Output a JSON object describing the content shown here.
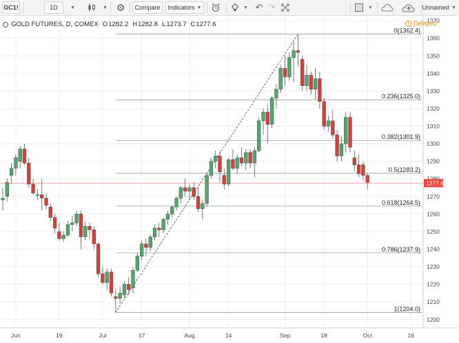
{
  "toolbar": {
    "symbol": "GC1!",
    "interval": "1D",
    "compare_label": "Compare",
    "indicators_label": "Indicators",
    "layout_name": "Unnamed"
  },
  "legend": {
    "title": "GOLD FUTURES, D, COMEX",
    "open_key": "O",
    "open": "1282.2",
    "high_key": "H",
    "high": "1282.8",
    "low_key": "L",
    "low": "1273.7",
    "close_key": "C",
    "close": "1277.6"
  },
  "status": {
    "delayed_label": "Delayed"
  },
  "colors": {
    "up": "#53a66e",
    "down": "#d3413b",
    "fib_line": "#9a9a9a",
    "last_price": "#e8463f",
    "grid": "#eeeeee"
  },
  "chart_data": {
    "type": "candlestick",
    "title": "GOLD FUTURES, D, COMEX",
    "symbol": "GC1!",
    "interval": "D",
    "ylim": [
      1196,
      1372
    ],
    "y_ticks": [
      1200,
      1210,
      1220,
      1230,
      1240,
      1250,
      1260,
      1270,
      1280,
      1290,
      1300,
      1310,
      1320,
      1330,
      1340,
      1350,
      1360,
      1370
    ],
    "x_labels": [
      "Jun",
      "19",
      "Jul",
      "17",
      "Aug",
      "14",
      "Sep",
      "18",
      "Oct",
      "16"
    ],
    "x_label_bars": [
      3,
      13,
      23,
      32,
      43,
      52,
      65,
      74,
      84,
      94
    ],
    "bar_count": 97,
    "last_price": 1277.6,
    "last_price_label": "1277.6",
    "fibonacci": {
      "levels": [
        {
          "ratio": "0",
          "price": 1362.4,
          "label": "0(1362.4)"
        },
        {
          "ratio": "0.236",
          "price": 1325.0,
          "label": "0.236(1325.0)"
        },
        {
          "ratio": "0.382",
          "price": 1301.9,
          "label": "0.382(1301.9)"
        },
        {
          "ratio": "0.5",
          "price": 1283.2,
          "label": "0.5(1283.2)"
        },
        {
          "ratio": "0.618",
          "price": 1264.5,
          "label": "0.618(1264.5)"
        },
        {
          "ratio": "0.786",
          "price": 1237.9,
          "label": "0.786(1237.9)"
        },
        {
          "ratio": "1",
          "price": 1204.0,
          "label": "1(1204.0)"
        }
      ],
      "anchor_low": {
        "bar": 26,
        "price": 1204.0
      },
      "anchor_high": {
        "bar": 68,
        "price": 1362.4
      }
    },
    "candles": [
      {
        "o": 1268,
        "h": 1275,
        "l": 1262,
        "c": 1269
      },
      {
        "o": 1270,
        "h": 1280,
        "l": 1267,
        "c": 1278
      },
      {
        "o": 1282,
        "h": 1289,
        "l": 1277,
        "c": 1286
      },
      {
        "o": 1286,
        "h": 1294,
        "l": 1282,
        "c": 1292
      },
      {
        "o": 1290,
        "h": 1299,
        "l": 1286,
        "c": 1297
      },
      {
        "o": 1297,
        "h": 1300,
        "l": 1288,
        "c": 1289
      },
      {
        "o": 1289,
        "h": 1292,
        "l": 1275,
        "c": 1277
      },
      {
        "o": 1277,
        "h": 1280,
        "l": 1271,
        "c": 1272
      },
      {
        "o": 1271,
        "h": 1274,
        "l": 1268,
        "c": 1271
      },
      {
        "o": 1271,
        "h": 1280,
        "l": 1262,
        "c": 1269
      },
      {
        "o": 1269,
        "h": 1272,
        "l": 1263,
        "c": 1265
      },
      {
        "o": 1264,
        "h": 1266,
        "l": 1256,
        "c": 1258
      },
      {
        "o": 1258,
        "h": 1260,
        "l": 1249,
        "c": 1252
      },
      {
        "o": 1250,
        "h": 1255,
        "l": 1245,
        "c": 1246
      },
      {
        "o": 1246,
        "h": 1250,
        "l": 1244,
        "c": 1248
      },
      {
        "o": 1248,
        "h": 1256,
        "l": 1247,
        "c": 1254
      },
      {
        "o": 1254,
        "h": 1259,
        "l": 1250,
        "c": 1255
      },
      {
        "o": 1255,
        "h": 1262,
        "l": 1253,
        "c": 1260
      },
      {
        "o": 1260,
        "h": 1262,
        "l": 1240,
        "c": 1247
      },
      {
        "o": 1247,
        "h": 1256,
        "l": 1245,
        "c": 1253
      },
      {
        "o": 1253,
        "h": 1255,
        "l": 1246,
        "c": 1251
      },
      {
        "o": 1251,
        "h": 1253,
        "l": 1240,
        "c": 1243
      },
      {
        "o": 1243,
        "h": 1244,
        "l": 1224,
        "c": 1226
      },
      {
        "o": 1226,
        "h": 1230,
        "l": 1220,
        "c": 1221
      },
      {
        "o": 1221,
        "h": 1229,
        "l": 1217,
        "c": 1227
      },
      {
        "o": 1227,
        "h": 1229,
        "l": 1213,
        "c": 1215
      },
      {
        "o": 1213,
        "h": 1217,
        "l": 1204,
        "c": 1212
      },
      {
        "o": 1212,
        "h": 1219,
        "l": 1209,
        "c": 1215
      },
      {
        "o": 1214,
        "h": 1222,
        "l": 1212,
        "c": 1220
      },
      {
        "o": 1220,
        "h": 1224,
        "l": 1214,
        "c": 1217
      },
      {
        "o": 1218,
        "h": 1230,
        "l": 1215,
        "c": 1228
      },
      {
        "o": 1228,
        "h": 1238,
        "l": 1227,
        "c": 1236
      },
      {
        "o": 1236,
        "h": 1245,
        "l": 1234,
        "c": 1243
      },
      {
        "o": 1243,
        "h": 1246,
        "l": 1236,
        "c": 1241
      },
      {
        "o": 1241,
        "h": 1248,
        "l": 1239,
        "c": 1247
      },
      {
        "o": 1247,
        "h": 1254,
        "l": 1245,
        "c": 1252
      },
      {
        "o": 1252,
        "h": 1255,
        "l": 1247,
        "c": 1251
      },
      {
        "o": 1251,
        "h": 1258,
        "l": 1249,
        "c": 1257
      },
      {
        "o": 1257,
        "h": 1262,
        "l": 1254,
        "c": 1260
      },
      {
        "o": 1260,
        "h": 1265,
        "l": 1258,
        "c": 1264
      },
      {
        "o": 1264,
        "h": 1270,
        "l": 1262,
        "c": 1269
      },
      {
        "o": 1269,
        "h": 1276,
        "l": 1266,
        "c": 1275
      },
      {
        "o": 1275,
        "h": 1280,
        "l": 1270,
        "c": 1273
      },
      {
        "o": 1273,
        "h": 1277,
        "l": 1268,
        "c": 1275
      },
      {
        "o": 1275,
        "h": 1278,
        "l": 1268,
        "c": 1270
      },
      {
        "o": 1270,
        "h": 1275,
        "l": 1261,
        "c": 1263
      },
      {
        "o": 1263,
        "h": 1268,
        "l": 1257,
        "c": 1266
      },
      {
        "o": 1266,
        "h": 1283,
        "l": 1264,
        "c": 1282
      },
      {
        "o": 1282,
        "h": 1292,
        "l": 1280,
        "c": 1290
      },
      {
        "o": 1290,
        "h": 1296,
        "l": 1286,
        "c": 1293
      },
      {
        "o": 1293,
        "h": 1296,
        "l": 1278,
        "c": 1284
      },
      {
        "o": 1282,
        "h": 1286,
        "l": 1274,
        "c": 1277
      },
      {
        "o": 1277,
        "h": 1292,
        "l": 1276,
        "c": 1291
      },
      {
        "o": 1291,
        "h": 1297,
        "l": 1285,
        "c": 1286
      },
      {
        "o": 1286,
        "h": 1294,
        "l": 1283,
        "c": 1292
      },
      {
        "o": 1292,
        "h": 1298,
        "l": 1287,
        "c": 1289
      },
      {
        "o": 1289,
        "h": 1297,
        "l": 1285,
        "c": 1295
      },
      {
        "o": 1295,
        "h": 1297,
        "l": 1286,
        "c": 1289
      },
      {
        "o": 1289,
        "h": 1298,
        "l": 1281,
        "c": 1296
      },
      {
        "o": 1296,
        "h": 1315,
        "l": 1295,
        "c": 1313
      },
      {
        "o": 1313,
        "h": 1320,
        "l": 1305,
        "c": 1318
      },
      {
        "o": 1318,
        "h": 1322,
        "l": 1300,
        "c": 1311
      },
      {
        "o": 1311,
        "h": 1327,
        "l": 1309,
        "c": 1326
      },
      {
        "o": 1326,
        "h": 1334,
        "l": 1320,
        "c": 1331
      },
      {
        "o": 1331,
        "h": 1345,
        "l": 1329,
        "c": 1343
      },
      {
        "o": 1343,
        "h": 1350,
        "l": 1333,
        "c": 1338
      },
      {
        "o": 1338,
        "h": 1352,
        "l": 1336,
        "c": 1349
      },
      {
        "o": 1349,
        "h": 1358,
        "l": 1335,
        "c": 1353
      },
      {
        "o": 1353,
        "h": 1362,
        "l": 1344,
        "c": 1352
      },
      {
        "o": 1348,
        "h": 1350,
        "l": 1330,
        "c": 1333
      },
      {
        "o": 1333,
        "h": 1345,
        "l": 1330,
        "c": 1339
      },
      {
        "o": 1339,
        "h": 1341,
        "l": 1328,
        "c": 1331
      },
      {
        "o": 1331,
        "h": 1343,
        "l": 1325,
        "c": 1337
      },
      {
        "o": 1337,
        "h": 1341,
        "l": 1320,
        "c": 1324
      },
      {
        "o": 1324,
        "h": 1326,
        "l": 1308,
        "c": 1310
      },
      {
        "o": 1310,
        "h": 1316,
        "l": 1307,
        "c": 1313
      },
      {
        "o": 1313,
        "h": 1319,
        "l": 1303,
        "c": 1305
      },
      {
        "o": 1305,
        "h": 1308,
        "l": 1290,
        "c": 1293
      },
      {
        "o": 1293,
        "h": 1304,
        "l": 1290,
        "c": 1300
      },
      {
        "o": 1300,
        "h": 1318,
        "l": 1295,
        "c": 1315
      },
      {
        "o": 1315,
        "h": 1318,
        "l": 1295,
        "c": 1298
      },
      {
        "o": 1292,
        "h": 1296,
        "l": 1284,
        "c": 1288
      },
      {
        "o": 1288,
        "h": 1294,
        "l": 1281,
        "c": 1283
      },
      {
        "o": 1288,
        "h": 1290,
        "l": 1279,
        "c": 1282
      },
      {
        "o": 1282,
        "h": 1283,
        "l": 1274,
        "c": 1278
      }
    ]
  }
}
